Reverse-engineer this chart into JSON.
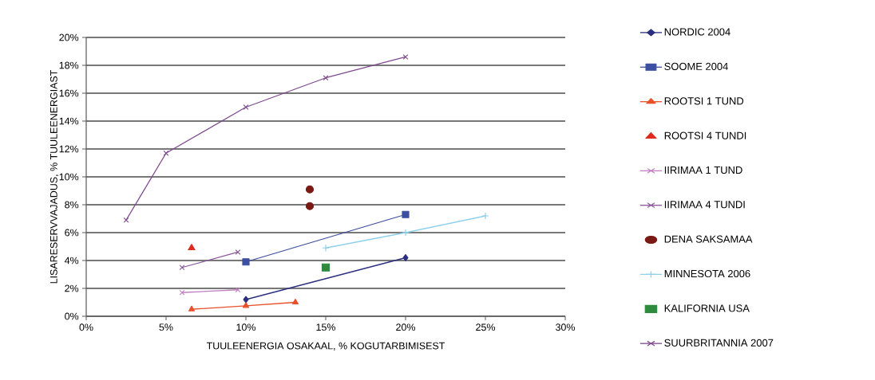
{
  "chart_data": {
    "type": "line",
    "xlabel": "TUULEENERGIA OSAKAAL, % KOGUTARBIMISEST",
    "ylabel": "LISARESERVVAJADUS, % TUULEENERGIAST",
    "xlim": [
      0,
      30
    ],
    "ylim": [
      0,
      20
    ],
    "xticks": [
      {
        "value": 0,
        "label": "0%"
      },
      {
        "value": 5,
        "label": "5%"
      },
      {
        "value": 10,
        "label": "10%"
      },
      {
        "value": 15,
        "label": "15%"
      },
      {
        "value": 20,
        "label": "20%"
      },
      {
        "value": 25,
        "label": "25%"
      },
      {
        "value": 30,
        "label": "30%"
      }
    ],
    "yticks": [
      {
        "value": 0,
        "label": "0%"
      },
      {
        "value": 2,
        "label": "2%"
      },
      {
        "value": 4,
        "label": "4%"
      },
      {
        "value": 6,
        "label": "6%"
      },
      {
        "value": 8,
        "label": "8%"
      },
      {
        "value": 10,
        "label": "10%"
      },
      {
        "value": 12,
        "label": "12%"
      },
      {
        "value": 14,
        "label": "14%"
      },
      {
        "value": 16,
        "label": "16%"
      },
      {
        "value": 18,
        "label": "18%"
      },
      {
        "value": 20,
        "label": "20%"
      }
    ],
    "grid": "y",
    "legend": "right",
    "series": [
      {
        "name": "NORDIC 2004",
        "marker": "diamond",
        "color": "#2b2f7f",
        "x": [
          10,
          20
        ],
        "values": [
          1.2,
          4.2
        ]
      },
      {
        "name": "SOOME 2004",
        "marker": "square",
        "color": "#3d4fa0",
        "x": [
          10,
          20
        ],
        "values": [
          3.9,
          7.3
        ]
      },
      {
        "name": "ROOTSI 1 TUND",
        "marker": "triangle",
        "color": "#e8502a",
        "x": [
          6.6,
          10,
          13.1
        ],
        "values": [
          0.5,
          0.75,
          1.0
        ]
      },
      {
        "name": "ROOTSI 4 TUNDI",
        "type": "scatter",
        "marker": "triangle",
        "color": "#e02a1e",
        "x": [
          6.6
        ],
        "values": [
          4.9
        ]
      },
      {
        "name": "IIRIMAA 1 TUND",
        "marker": "cross",
        "color": "#c080c0",
        "x": [
          6,
          9.5
        ],
        "values": [
          1.7,
          1.9
        ]
      },
      {
        "name": "IIRIMAA 4 TUNDI",
        "marker": "cross",
        "color": "#8a5a9a",
        "x": [
          6,
          9.5
        ],
        "values": [
          3.5,
          4.6
        ]
      },
      {
        "name": "DENA SAKSAMAA",
        "type": "scatter",
        "marker": "circle",
        "color": "#7a1a14",
        "x": [
          14,
          14
        ],
        "values": [
          9.1,
          7.9
        ]
      },
      {
        "name": "MINNESOTA 2006",
        "marker": "plus",
        "color": "#8fd0ec",
        "x": [
          15,
          20,
          25
        ],
        "values": [
          4.9,
          6.0,
          7.2
        ]
      },
      {
        "name": "KALIFORNIA USA",
        "type": "scatter",
        "marker": "square",
        "color": "#2e8b3e",
        "x": [
          15
        ],
        "values": [
          3.5
        ]
      },
      {
        "name": "SUURBRITANNIA 2007",
        "marker": "cross",
        "color": "#7e4a8e",
        "x": [
          2.5,
          5,
          10,
          15,
          20
        ],
        "values": [
          6.9,
          11.7,
          15.0,
          17.1,
          18.6
        ]
      }
    ]
  }
}
